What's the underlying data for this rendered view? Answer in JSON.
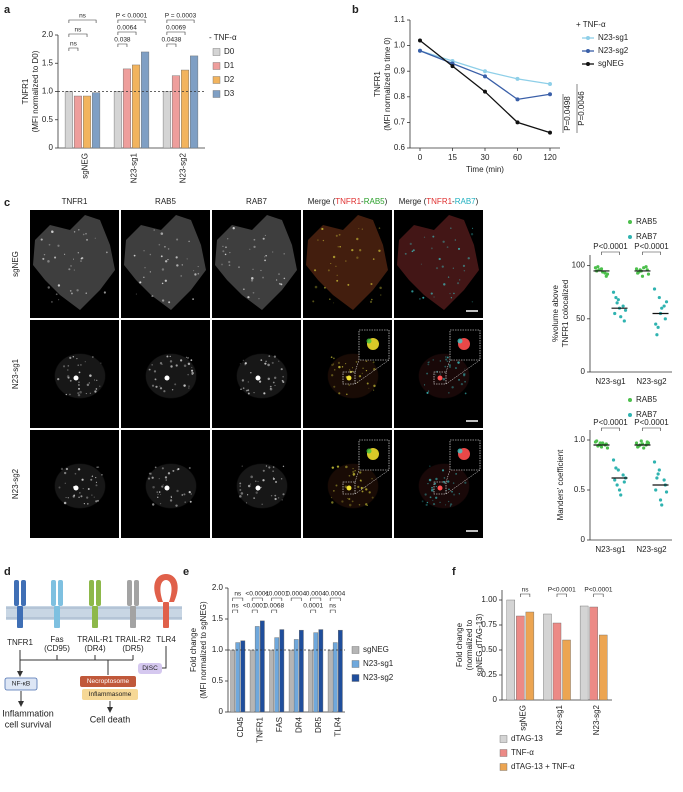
{
  "panel_labels": [
    "a",
    "b",
    "c",
    "d",
    "e",
    "f"
  ],
  "chart_data": [
    {
      "type": "bar",
      "ylabel": [
        "TNFR1",
        "(MFI normalized to D0)"
      ],
      "legend_title": "- TNF-α",
      "categories": [
        "sgNEG",
        "N23-sg1",
        "N23-sg2"
      ],
      "series": [
        {
          "name": "D0",
          "color": "#d4d4d4",
          "values": [
            1,
            1,
            1
          ]
        },
        {
          "name": "D1",
          "color": "#ee9e9c",
          "values": [
            0.92,
            1.4,
            1.28
          ]
        },
        {
          "name": "D2",
          "color": "#f2b45e",
          "values": [
            0.92,
            1.47,
            1.38
          ]
        },
        {
          "name": "D3",
          "color": "#7f9fc4",
          "values": [
            0.98,
            1.7,
            1.63
          ]
        }
      ],
      "ylim": [
        0,
        2
      ],
      "yticks": [
        0,
        0.5,
        {
          "value": 1,
          "label": "1.0"
        },
        1.5,
        {
          "value": 2,
          "label": "2.0"
        }
      ],
      "reference_line": 1,
      "annotations": [
        "ns",
        "ns",
        "ns",
        "P < 0.0001",
        "0.0064",
        "0.038",
        "P = 0.0003",
        "0.0069",
        "0.0438"
      ]
    },
    {
      "type": "line",
      "xlabel": "Time (min)",
      "ylabel": [
        "TNFR1",
        "(MFI normalized to time 0)"
      ],
      "legend_title": "+ TNF-α",
      "categories": [
        "0",
        "15",
        "30",
        "60",
        "120"
      ],
      "series": [
        {
          "name": "N23-sg1",
          "color": "#8ecfe8",
          "values": [
            0.98,
            0.94,
            0.9,
            0.87,
            0.85
          ]
        },
        {
          "name": "N23-sg2",
          "color": "#3a5fa8",
          "values": [
            0.98,
            0.93,
            0.88,
            0.79,
            0.81
          ]
        },
        {
          "name": "sgNEG",
          "color": "#111111",
          "values": [
            1.02,
            0.92,
            0.82,
            0.7,
            0.66
          ]
        }
      ],
      "ylim": [
        0.6,
        1.1
      ],
      "yticks": [
        0.6,
        0.7,
        0.8,
        0.9,
        {
          "value": 1,
          "label": "1.0"
        },
        1.1
      ],
      "annotations": [
        "P=0.0498",
        "P=0.0046"
      ]
    },
    {
      "type": "strip",
      "ylabel": [
        "%volume above",
        "TNFR1 colocalized"
      ],
      "categories": [
        "N23-sg1",
        "N23-sg2"
      ],
      "series": [
        {
          "name": "RAB5",
          "color": "#4cbf4c",
          "values": [
            95,
            95
          ],
          "points": [
            [
              98,
              96,
              93,
              95,
              97,
              90,
              99,
              94,
              92,
              96
            ],
            [
              97,
              95,
              99,
              93,
              90,
              96,
              94,
              98,
              92,
              96
            ]
          ]
        },
        {
          "name": "RAB7",
          "color": "#2fb3b0",
          "values": [
            60,
            55
          ],
          "points": [
            [
              75,
              68,
              62,
              55,
              60,
              48,
              70,
              52,
              58,
              65
            ],
            [
              78,
              70,
              62,
              45,
              55,
              50,
              35,
              60,
              66,
              42
            ]
          ]
        }
      ],
      "ylim": [
        0,
        110
      ],
      "yticks": [
        0,
        50,
        100
      ],
      "annotations": [
        "P<0.0001",
        "P<0.0001"
      ]
    },
    {
      "type": "strip",
      "ylabel": [
        "Manders' coefficient"
      ],
      "categories": [
        "N23-sg1",
        "N23-sg2"
      ],
      "series": [
        {
          "name": "RAB5",
          "color": "#4cbf4c",
          "values": [
            0.95,
            0.95
          ],
          "points": [
            [
              0.98,
              0.97,
              0.95,
              0.99,
              0.93,
              0.96,
              0.94,
              0.97,
              0.92,
              0.95
            ],
            [
              0.97,
              0.99,
              0.95,
              0.93,
              0.96,
              0.98,
              0.94,
              0.92,
              0.97,
              0.95
            ]
          ]
        },
        {
          "name": "RAB7",
          "color": "#2fb3b0",
          "values": [
            0.62,
            0.55
          ],
          "points": [
            [
              0.8,
              0.7,
              0.65,
              0.6,
              0.5,
              0.58,
              0.72,
              0.45,
              0.62,
              0.55
            ],
            [
              0.78,
              0.7,
              0.6,
              0.5,
              0.4,
              0.55,
              0.62,
              0.35,
              0.48,
              0.66
            ]
          ]
        }
      ],
      "ylim": [
        0,
        1.1
      ],
      "yticks": [
        0,
        0.5,
        {
          "value": 1,
          "label": "1.0"
        }
      ],
      "annotations": [
        "P<0.0001",
        "P<0.0001"
      ]
    },
    {
      "type": "bar",
      "ylabel": [
        "Fold change",
        "(MFI normalized to sgNEG)"
      ],
      "categories": [
        "CD45",
        "TNFR1",
        "FAS",
        "DR4",
        "DR5",
        "TLR4"
      ],
      "series": [
        {
          "name": "sgNEG",
          "color": "#b5b5b5",
          "values": [
            1,
            1,
            1,
            1,
            1,
            1
          ]
        },
        {
          "name": "N23-sg1",
          "color": "#6fa8dc",
          "values": [
            1.12,
            1.38,
            1.2,
            1.17,
            1.28,
            1.12
          ]
        },
        {
          "name": "N23-sg2",
          "color": "#1f4e9c",
          "values": [
            1.15,
            1.47,
            1.33,
            1.32,
            1.33,
            1.32
          ]
        }
      ],
      "ylim": [
        0,
        2
      ],
      "yticks": [
        0,
        0.5,
        {
          "value": 1,
          "label": "1.0"
        },
        1.5,
        {
          "value": 2,
          "label": "2.0"
        }
      ],
      "reference_line": 1,
      "annotations": [
        "ns",
        "ns",
        "<0.0001",
        "<0.0001",
        "<0.0001",
        "0.0068",
        "0.0004",
        "0.0004",
        "0.0001",
        "0.0004",
        "ns"
      ]
    },
    {
      "type": "bar",
      "ylabel": [
        "Fold change",
        "(normalized to",
        "sgNEG dTAG-13)"
      ],
      "categories": [
        "sgNEG",
        "N23-sg1",
        "N23-sg2"
      ],
      "series": [
        {
          "name": "dTAG-13",
          "color": "#d4d4d4",
          "values": [
            1,
            0.86,
            0.94
          ]
        },
        {
          "name": "TNF-α",
          "color": "#ec8a86",
          "values": [
            0.84,
            0.77,
            0.93
          ]
        },
        {
          "name": "dTAG-13 + TNF-α",
          "color": "#eca552",
          "values": [
            0.88,
            0.6,
            0.65
          ]
        }
      ],
      "ylim": [
        0,
        1.1
      ],
      "yticks": [
        0,
        0.25,
        {
          "value": 0.5,
          "label": "0.50"
        },
        0.75,
        {
          "value": 1,
          "label": "1.00"
        }
      ],
      "annotations": [
        "ns",
        "P<0.0001",
        "P<0.0001"
      ]
    }
  ],
  "microscopy": {
    "columns": [
      "TNFR1",
      "RAB5",
      "RAB7"
    ],
    "merges": [
      {
        "prefix": "Merge (",
        "first": "TNFR1",
        "sep": "-",
        "second": "RAB5",
        "suffix": ")"
      },
      {
        "prefix": "Merge (",
        "first": "TNFR1",
        "sep": "-",
        "second": "RAB7",
        "suffix": ")"
      }
    ],
    "rows": [
      "sgNEG",
      "N23-sg1",
      "N23-sg2"
    ]
  },
  "diagram": {
    "receptors": [
      [
        "TNFR1"
      ],
      [
        "Fas",
        "(CD95)"
      ],
      [
        "TRAIL-R1",
        "(DR4)"
      ],
      [
        "TRAIL-R2",
        "(DR5)"
      ],
      [
        "TLR4"
      ]
    ],
    "nodes": {
      "nfkb": "NF-κB",
      "necroptosome": "Necroptosome",
      "disc": "DISC",
      "inflammasome": "Inflammasome"
    },
    "outcomes": {
      "survival": [
        "Inflammation",
        "cell survival"
      ],
      "death": "Cell death"
    }
  }
}
